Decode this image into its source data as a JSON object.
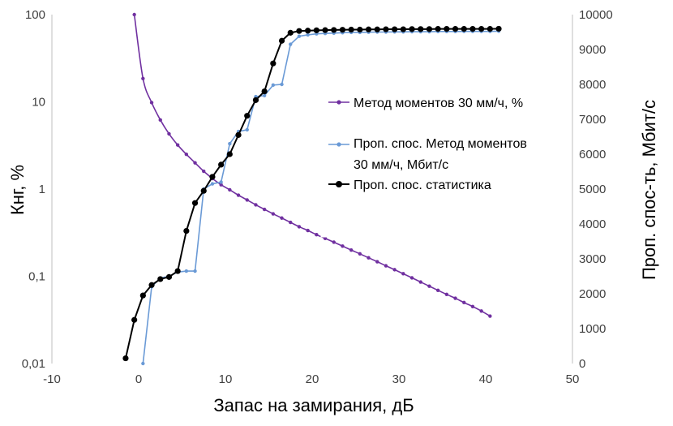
{
  "chart_data": {
    "type": "line",
    "xlabel": "Запас на замирания, дБ",
    "ylabel_left": "Кнг, %",
    "ylabel_right": "Проп. спос-ть, Мбит/с",
    "x_ticks": [
      "-10",
      "0",
      "10",
      "20",
      "30",
      "40",
      "50"
    ],
    "y_left_ticks": [
      "0,01",
      "0,1",
      "1",
      "10",
      "100"
    ],
    "y_right_ticks": [
      "0",
      "1000",
      "2000",
      "3000",
      "4000",
      "5000",
      "6000",
      "7000",
      "8000",
      "9000",
      "10000"
    ],
    "xlim": [
      -10,
      50
    ],
    "ylim_left": [
      0.01,
      100
    ],
    "y_left_scale": "log",
    "ylim_right": [
      0,
      10000
    ],
    "grid": false,
    "legend_position": "center-right",
    "series": [
      {
        "name": "Метод моментов 30 мм/ч, %",
        "axis": "left",
        "color": "#7030a0",
        "x": [
          -0.5,
          0.5,
          1.5,
          2.5,
          3.5,
          4.5,
          5.5,
          6.5,
          7.5,
          8.5,
          9.5,
          10.5,
          11.5,
          12.5,
          13.5,
          14.5,
          15.5,
          16.5,
          17.5,
          18.5,
          19.5,
          20.5,
          21.5,
          22.5,
          23.5,
          24.5,
          25.5,
          26.5,
          27.5,
          28.5,
          29.5,
          30.5,
          31.5,
          32.5,
          33.5,
          34.5,
          35.5,
          36.5,
          37.5,
          38.5,
          39.5,
          40.5
        ],
        "y": [
          100,
          18.5,
          9.8,
          6.2,
          4.3,
          3.2,
          2.5,
          2.0,
          1.6,
          1.32,
          1.12,
          0.98,
          0.85,
          0.75,
          0.66,
          0.585,
          0.52,
          0.465,
          0.415,
          0.37,
          0.335,
          0.3,
          0.272,
          0.246,
          0.222,
          0.2,
          0.181,
          0.163,
          0.147,
          0.132,
          0.119,
          0.107,
          0.096,
          0.086,
          0.077,
          0.069,
          0.062,
          0.056,
          0.05,
          0.045,
          0.04,
          0.035
        ]
      },
      {
        "name": "Проп. спос. Метод моментов 30 мм/ч, Мбит/с",
        "axis": "right",
        "color": "#6a9ad6",
        "x": [
          0.5,
          1.5,
          2.5,
          3.5,
          4.5,
          5.5,
          6.5,
          7.5,
          8.5,
          9.5,
          10.5,
          11.5,
          12.5,
          13.5,
          14.5,
          15.5,
          16.5,
          17.5,
          18.5,
          19.5,
          20.5,
          21.5,
          22.5,
          23.5,
          24.5,
          25.5,
          26.5,
          27.5,
          28.5,
          29.5,
          30.5,
          31.5,
          32.5,
          33.5,
          34.5,
          35.5,
          36.5,
          37.5,
          38.5,
          39.5,
          40.5,
          41.5
        ],
        "y": [
          0,
          2200,
          2450,
          2500,
          2620,
          2650,
          2650,
          5000,
          5150,
          5200,
          6300,
          6650,
          6700,
          7650,
          7680,
          7980,
          8000,
          9150,
          9380,
          9420,
          9450,
          9460,
          9470,
          9480,
          9490,
          9490,
          9495,
          9500,
          9500,
          9505,
          9505,
          9510,
          9510,
          9510,
          9515,
          9515,
          9515,
          9520,
          9520,
          9520,
          9520,
          9525
        ]
      },
      {
        "name": "Проп. спос. статистика",
        "axis": "right",
        "color": "#000000",
        "x": [
          -1.5,
          -0.5,
          0.5,
          1.5,
          2.5,
          3.5,
          4.5,
          5.5,
          6.5,
          7.5,
          8.5,
          9.5,
          10.5,
          11.5,
          12.5,
          13.5,
          14.5,
          15.5,
          16.5,
          17.5,
          18.5,
          19.5,
          20.5,
          21.5,
          22.5,
          23.5,
          24.5,
          25.5,
          26.5,
          27.5,
          28.5,
          29.5,
          30.5,
          31.5,
          32.5,
          33.5,
          34.5,
          35.5,
          36.5,
          37.5,
          38.5,
          39.5,
          40.5,
          41.5
        ],
        "y": [
          150,
          1250,
          1950,
          2250,
          2420,
          2480,
          2650,
          3800,
          4600,
          4950,
          5350,
          5700,
          6000,
          6550,
          7100,
          7550,
          7800,
          8600,
          9250,
          9480,
          9530,
          9540,
          9550,
          9555,
          9560,
          9565,
          9570,
          9570,
          9575,
          9575,
          9580,
          9580,
          9580,
          9585,
          9585,
          9585,
          9590,
          9590,
          9590,
          9590,
          9590,
          9590,
          9590,
          9595
        ]
      }
    ]
  },
  "legend": {
    "items": [
      {
        "label_lines": [
          "Метод моментов 30 мм/ч, %"
        ]
      },
      {
        "label_lines": [
          "Проп. спос. Метод моментов",
          "30 мм/ч, Мбит/с"
        ]
      },
      {
        "label_lines": [
          "Проп. спос. статистика"
        ]
      }
    ]
  }
}
